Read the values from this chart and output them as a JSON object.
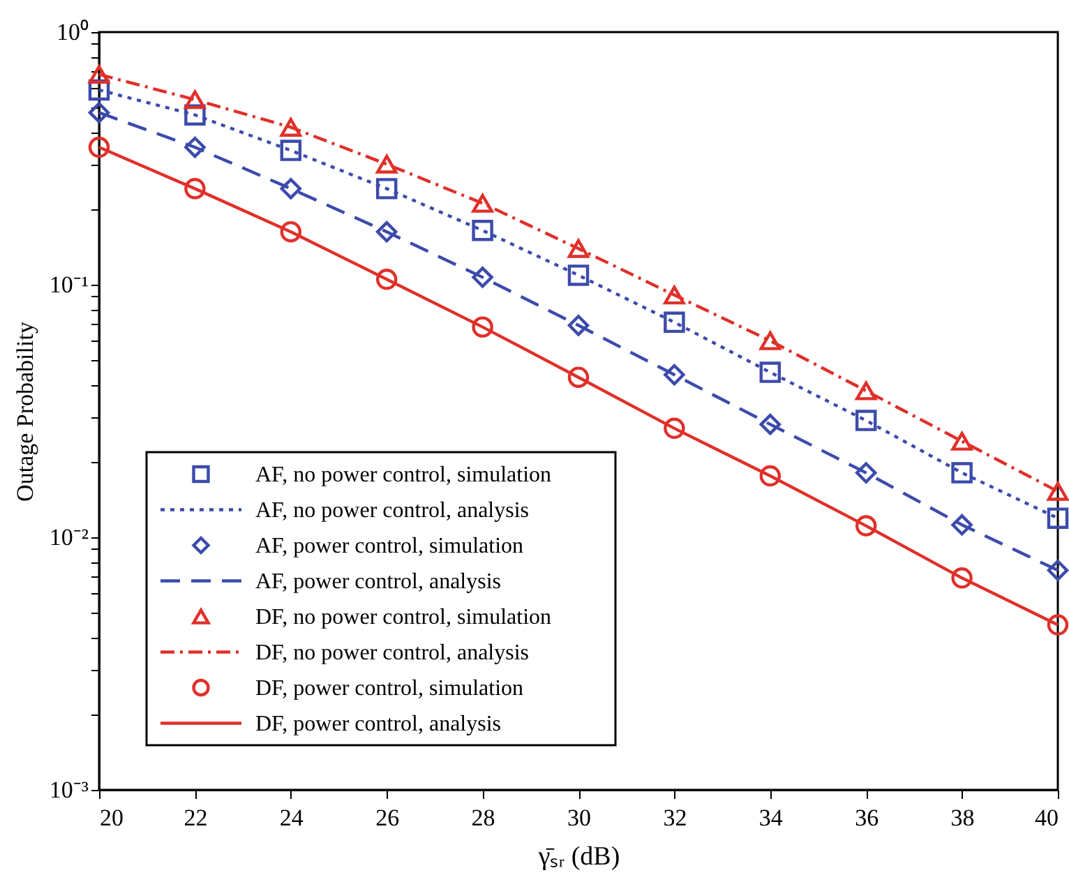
{
  "chart_data": {
    "type": "line",
    "xlabel": "γ̄ₛᵣ (dB)",
    "ylabel": "Outage Probability",
    "x": [
      20,
      22,
      24,
      26,
      28,
      30,
      32,
      34,
      36,
      38,
      40
    ],
    "xlim": [
      20,
      40
    ],
    "xticks": [
      20,
      22,
      24,
      26,
      28,
      30,
      32,
      34,
      36,
      38,
      40
    ],
    "log": true,
    "ylim": [
      0.001,
      1
    ],
    "yticks": [
      {
        "value": 0.001,
        "label": "10⁻³"
      },
      {
        "value": 0.002,
        "label": null
      },
      {
        "value": 0.003,
        "label": null
      },
      {
        "value": 0.004,
        "label": null
      },
      {
        "value": 0.005,
        "label": null
      },
      {
        "value": 0.006,
        "label": null
      },
      {
        "value": 0.007,
        "label": null
      },
      {
        "value": 0.008,
        "label": null
      },
      {
        "value": 0.009,
        "label": null
      },
      {
        "value": 0.01,
        "label": "10⁻²"
      },
      {
        "value": 0.02,
        "label": null
      },
      {
        "value": 0.03,
        "label": null
      },
      {
        "value": 0.04,
        "label": null
      },
      {
        "value": 0.05,
        "label": null
      },
      {
        "value": 0.06,
        "label": null
      },
      {
        "value": 0.07,
        "label": null
      },
      {
        "value": 0.08,
        "label": null
      },
      {
        "value": 0.09,
        "label": null
      },
      {
        "value": 0.1,
        "label": "10⁻¹"
      },
      {
        "value": 0.2,
        "label": null
      },
      {
        "value": 0.3,
        "label": null
      },
      {
        "value": 0.4,
        "label": null
      },
      {
        "value": 0.5,
        "label": null
      },
      {
        "value": 0.6,
        "label": null
      },
      {
        "value": 0.7,
        "label": null
      },
      {
        "value": 0.8,
        "label": null
      },
      {
        "value": 0.9,
        "label": null
      },
      {
        "value": 1,
        "label": "10⁰"
      }
    ],
    "grid": false,
    "legend": "bottom left",
    "series": [
      {
        "name": "AF, no power control, simulation",
        "type": "scatter",
        "marker": "square",
        "color": "#3c4bab",
        "values": [
          0.59,
          0.47,
          0.34,
          0.24,
          0.164,
          0.109,
          0.071,
          0.045,
          0.029,
          0.018,
          0.0119
        ]
      },
      {
        "name": "AF, no power control, analysis",
        "marker": "none",
        "line_style": "dotted",
        "color": "#3c4bab",
        "values": [
          0.59,
          0.47,
          0.34,
          0.24,
          0.164,
          0.109,
          0.071,
          0.045,
          0.029,
          0.018,
          0.0119
        ]
      },
      {
        "name": "AF, power control, simulation",
        "type": "scatter",
        "marker": "diamond",
        "color": "#3c4bab",
        "values": [
          0.48,
          0.35,
          0.24,
          0.162,
          0.107,
          0.069,
          0.044,
          0.028,
          0.018,
          0.0112,
          0.0074
        ]
      },
      {
        "name": "AF, power control, analysis",
        "marker": "none",
        "line_style": "dashed",
        "color": "#3c4bab",
        "values": [
          0.48,
          0.35,
          0.24,
          0.162,
          0.107,
          0.069,
          0.044,
          0.028,
          0.018,
          0.0112,
          0.0074
        ]
      },
      {
        "name": "DF, no power control, simulation",
        "type": "scatter",
        "marker": "triangle",
        "color": "#e0302a",
        "values": [
          0.68,
          0.54,
          0.42,
          0.3,
          0.21,
          0.139,
          0.091,
          0.06,
          0.038,
          0.024,
          0.0152
        ]
      },
      {
        "name": "DF, no power control, analysis",
        "marker": "none",
        "line_style": "dashdot",
        "color": "#e0302a",
        "values": [
          0.68,
          0.54,
          0.42,
          0.3,
          0.21,
          0.139,
          0.091,
          0.06,
          0.038,
          0.024,
          0.0152
        ]
      },
      {
        "name": "DF, power control, simulation",
        "type": "scatter",
        "marker": "circle",
        "color": "#e0302a",
        "values": [
          0.35,
          0.24,
          0.162,
          0.105,
          0.068,
          0.043,
          0.027,
          0.0175,
          0.0111,
          0.0069,
          0.0045
        ]
      },
      {
        "name": "DF, power control, analysis",
        "marker": "none",
        "line_style": "solid",
        "color": "#e0302a",
        "values": [
          0.35,
          0.24,
          0.162,
          0.105,
          0.068,
          0.043,
          0.027,
          0.0175,
          0.0111,
          0.0069,
          0.0045
        ]
      }
    ]
  }
}
